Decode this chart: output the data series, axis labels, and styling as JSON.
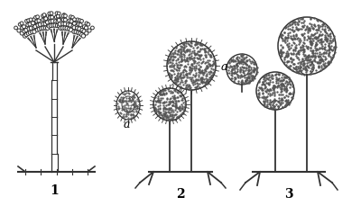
{
  "background_color": "#ffffff",
  "label_1": "1",
  "label_2": "2",
  "label_3": "3",
  "label_a": "a",
  "fig_width": 4.0,
  "fig_height": 2.3,
  "dpi": 100,
  "line_color": "#333333",
  "dot_color": "#555555",
  "f1x": 60,
  "f2x": 200,
  "f3x": 320
}
